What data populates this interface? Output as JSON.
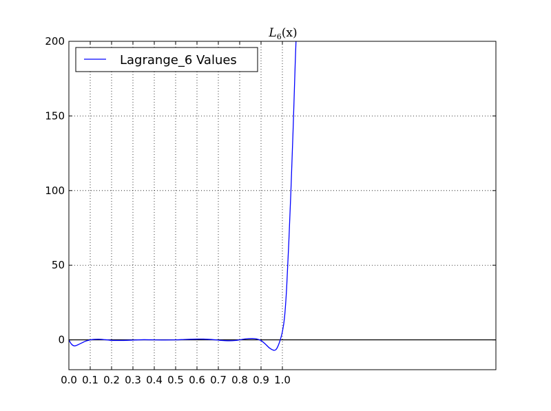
{
  "chart_data": {
    "type": "line",
    "title_main": "L",
    "title_sub": "6",
    "title_tail": "(x)",
    "xlabel": "",
    "ylabel": "",
    "xlim": [
      0.0,
      2.0
    ],
    "ylim": [
      -20,
      200
    ],
    "x_ticks": [
      0.0,
      0.1,
      0.2,
      0.3,
      0.4,
      0.5,
      0.6,
      0.7,
      0.8,
      0.9,
      1.0
    ],
    "x_tick_labels": [
      "0.0",
      "0.1",
      "0.2",
      "0.3",
      "0.4",
      "0.5",
      "0.6",
      "0.7",
      "0.8",
      "0.9",
      "1.0"
    ],
    "y_ticks": [
      0,
      50,
      100,
      150,
      200
    ],
    "y_tick_labels": [
      "0",
      "50",
      "100",
      "150",
      "200"
    ],
    "grid": true,
    "legend_position": "top-left",
    "zero_line": true,
    "series": [
      {
        "name": "Lagrange_6 Values",
        "color": "#0000ff",
        "x": [
          0.0,
          0.01,
          0.02,
          0.03,
          0.05,
          0.08,
          0.11,
          0.14,
          0.17,
          0.2,
          0.23,
          0.27,
          0.31,
          0.35,
          0.4,
          0.45,
          0.5,
          0.55,
          0.6,
          0.63,
          0.67,
          0.71,
          0.75,
          0.78,
          0.8,
          0.83,
          0.86,
          0.88,
          0.9,
          0.92,
          0.94,
          0.96,
          0.97,
          0.98,
          0.99,
          1.0,
          1.01,
          1.02,
          1.03,
          1.04,
          1.05,
          1.06,
          1.065
        ],
        "y": [
          0.0,
          -2.5,
          -3.8,
          -4.0,
          -2.8,
          -0.8,
          0.2,
          0.4,
          0.1,
          -0.3,
          -0.4,
          -0.3,
          -0.1,
          0.1,
          0.0,
          -0.1,
          0.0,
          0.3,
          0.5,
          0.5,
          0.2,
          -0.3,
          -0.6,
          -0.4,
          0.0,
          0.7,
          0.9,
          0.6,
          -0.5,
          -2.8,
          -5.5,
          -7.0,
          -6.5,
          -4.0,
          0.0,
          5.5,
          15,
          35,
          65,
          100,
          140,
          185,
          205
        ]
      }
    ]
  }
}
